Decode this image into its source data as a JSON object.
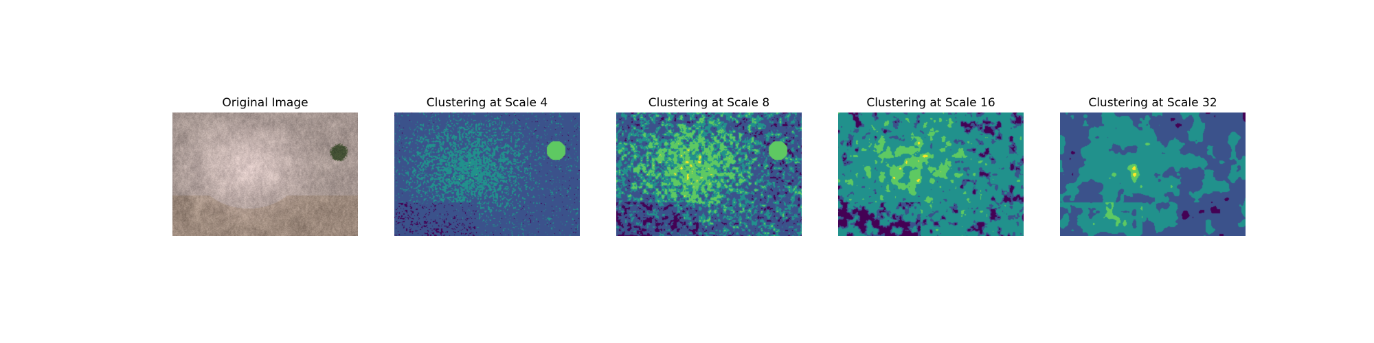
{
  "figure": {
    "panels": [
      {
        "title": "Original Image",
        "kind": "photo"
      },
      {
        "title": "Clustering at Scale 4",
        "kind": "cluster",
        "scale": 4
      },
      {
        "title": "Clustering at Scale 8",
        "kind": "cluster",
        "scale": 8
      },
      {
        "title": "Clustering at Scale 16",
        "kind": "cluster",
        "scale": 16
      },
      {
        "title": "Clustering at Scale 32",
        "kind": "cluster",
        "scale": 32
      }
    ]
  },
  "palette": {
    "viridis": [
      "#440154",
      "#3b528b",
      "#21918c",
      "#5ec962",
      "#fde725"
    ],
    "photo": [
      "#b8a9a8",
      "#d8cbcb",
      "#a89a8e",
      "#8e8278",
      "#c9bdbb"
    ],
    "shrub": "#3d4a2e"
  }
}
